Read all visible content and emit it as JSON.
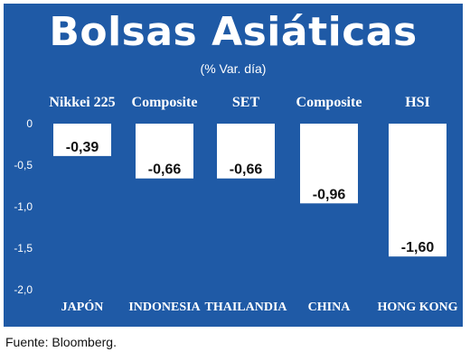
{
  "header": {
    "title": "Bolsas Asiáticas",
    "subtitle": "(% Var. día)"
  },
  "footer": {
    "source": "Fuente: Bloomberg."
  },
  "colors": {
    "background": "#1f5aa6",
    "bar": "#ffffff",
    "text_light": "#ffffff",
    "text_dark": "#111111"
  },
  "chart_data": {
    "type": "bar",
    "orientation": "vertical",
    "index_labels": [
      "Nikkei 225",
      "Composite",
      "SET",
      "Composite",
      "HSI"
    ],
    "categories": [
      "JAPÓN",
      "INDONESIA",
      "THAILANDIA",
      "CHINA",
      "HONG KONG"
    ],
    "values": [
      -0.39,
      -0.66,
      -0.66,
      -0.96,
      -1.6
    ],
    "value_labels": [
      "-0,39",
      "-0,66",
      "-0,66",
      "-0,96",
      "-1,60"
    ],
    "yticks": [
      "0",
      "-0,5",
      "-1,0",
      "-1,5",
      "-2,0"
    ],
    "ytick_values": [
      0,
      -0.5,
      -1.0,
      -1.5,
      -2.0
    ],
    "ylim": [
      -2.0,
      0
    ],
    "grid": false,
    "legend": "none"
  }
}
